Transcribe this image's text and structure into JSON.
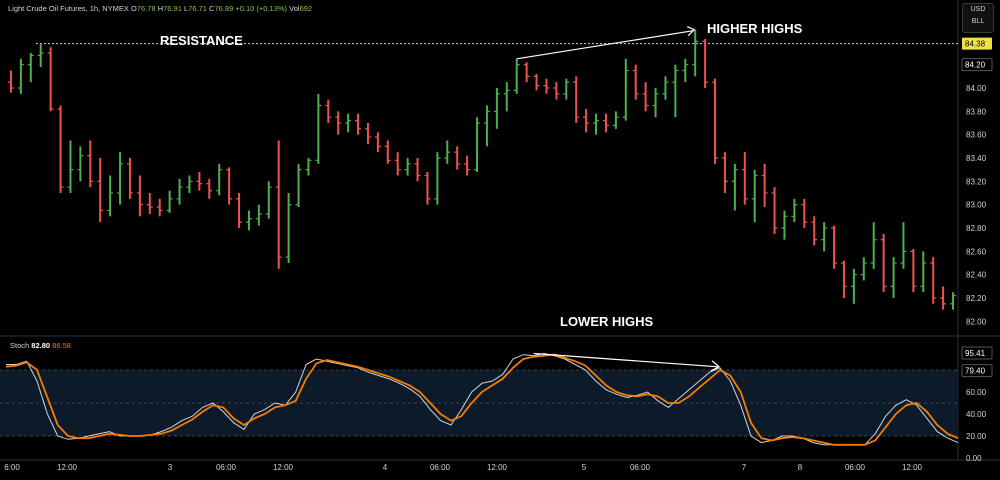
{
  "header": {
    "instrument": "Light Crude Oil Futures, 1h, NYMEX",
    "o_label": "O",
    "o_value": "76.78",
    "h_label": "H",
    "h_value": "76.91",
    "l_label": "L",
    "l_value": "76.71",
    "c_label": "C",
    "c_value": "76.89",
    "change": "+0.10 (+0.13%)",
    "vol_label": "Vol",
    "vol_value": "692"
  },
  "currency": {
    "line1": "USD",
    "line2": "BLL"
  },
  "stoch_header": {
    "label": "Stoch",
    "k_value": "82.80",
    "d_value": "86.58"
  },
  "colors": {
    "up": "#4caf50",
    "down": "#ef5350",
    "k_line": "#d1d4dc",
    "d_line": "#f57c00",
    "resistance": "#f0e14a",
    "price_tag": "#f0e14a"
  },
  "chart_data": [
    {
      "type": "candlestick",
      "title": "",
      "annotations": [
        "RESISTANCE",
        "HIGHER HIGHS"
      ],
      "resistance_level": 84.38,
      "price_tag": "84.38",
      "last_price_tag": "84.20",
      "ylim": [
        81.9,
        84.6
      ],
      "yticks": [
        "84.20",
        "84.00",
        "83.80",
        "83.60",
        "83.40",
        "83.20",
        "83.00",
        "82.80",
        "82.60",
        "82.40",
        "82.20",
        "82.00"
      ],
      "xticks": [
        "6:00",
        "12:00",
        "3",
        "06:00",
        "12:00",
        "4",
        "06:00",
        "12:00",
        "5",
        "06:00",
        "7",
        "8",
        "06:00",
        "12:00"
      ],
      "ohlc": [
        [
          84.05,
          84.15,
          83.96,
          84.0
        ],
        [
          84.0,
          84.25,
          83.95,
          84.2
        ],
        [
          84.2,
          84.3,
          84.05,
          84.28
        ],
        [
          84.28,
          84.38,
          84.18,
          84.3
        ],
        [
          84.3,
          84.35,
          83.8,
          83.82
        ],
        [
          83.82,
          83.85,
          83.1,
          83.15
        ],
        [
          83.15,
          83.55,
          83.1,
          83.3
        ],
        [
          83.3,
          83.5,
          83.2,
          83.42
        ],
        [
          83.42,
          83.55,
          83.15,
          83.2
        ],
        [
          83.2,
          83.4,
          82.85,
          82.95
        ],
        [
          82.95,
          83.25,
          82.9,
          83.1
        ],
        [
          83.1,
          83.45,
          83.0,
          83.35
        ],
        [
          83.35,
          83.4,
          83.05,
          83.1
        ],
        [
          83.1,
          83.25,
          82.9,
          83.0
        ],
        [
          83.0,
          83.1,
          82.92,
          82.98
        ],
        [
          82.98,
          83.05,
          82.9,
          82.95
        ],
        [
          82.95,
          83.12,
          82.93,
          83.05
        ],
        [
          83.05,
          83.22,
          83.0,
          83.15
        ],
        [
          83.15,
          83.25,
          83.1,
          83.2
        ],
        [
          83.2,
          83.28,
          83.12,
          83.18
        ],
        [
          83.18,
          83.22,
          83.05,
          83.12
        ],
        [
          83.12,
          83.35,
          83.08,
          83.3
        ],
        [
          83.3,
          83.32,
          83.0,
          83.05
        ],
        [
          83.05,
          83.1,
          82.8,
          82.85
        ],
        [
          82.85,
          82.95,
          82.78,
          82.88
        ],
        [
          82.88,
          83.0,
          82.82,
          82.92
        ],
        [
          82.92,
          83.2,
          82.88,
          83.15
        ],
        [
          83.15,
          83.55,
          82.45,
          82.55
        ],
        [
          82.55,
          83.1,
          82.5,
          83.0
        ],
        [
          83.0,
          83.35,
          82.98,
          83.3
        ],
        [
          83.3,
          83.4,
          83.25,
          83.38
        ],
        [
          83.38,
          83.95,
          83.35,
          83.85
        ],
        [
          83.85,
          83.9,
          83.7,
          83.75
        ],
        [
          83.75,
          83.8,
          83.6,
          83.7
        ],
        [
          83.7,
          83.78,
          83.62,
          83.72
        ],
        [
          83.72,
          83.78,
          83.6,
          83.65
        ],
        [
          83.65,
          83.7,
          83.52,
          83.58
        ],
        [
          83.58,
          83.62,
          83.45,
          83.5
        ],
        [
          83.5,
          83.55,
          83.35,
          83.38
        ],
        [
          83.38,
          83.45,
          83.25,
          83.3
        ],
        [
          83.3,
          83.4,
          83.25,
          83.35
        ],
        [
          83.35,
          83.4,
          83.2,
          83.25
        ],
        [
          83.25,
          83.28,
          83.0,
          83.05
        ],
        [
          83.05,
          83.45,
          83.0,
          83.4
        ],
        [
          83.4,
          83.55,
          83.35,
          83.45
        ],
        [
          83.45,
          83.5,
          83.3,
          83.35
        ],
        [
          83.35,
          83.42,
          83.25,
          83.3
        ],
        [
          83.3,
          83.75,
          83.28,
          83.7
        ],
        [
          83.7,
          83.85,
          83.5,
          83.8
        ],
        [
          83.8,
          84.0,
          83.65,
          83.95
        ],
        [
          83.95,
          84.05,
          83.8,
          83.98
        ],
        [
          83.98,
          84.25,
          83.95,
          84.2
        ],
        [
          84.2,
          84.22,
          84.05,
          84.1
        ],
        [
          84.1,
          84.12,
          83.98,
          84.02
        ],
        [
          84.02,
          84.08,
          83.95,
          84.0
        ],
        [
          84.0,
          84.05,
          83.9,
          83.95
        ],
        [
          83.95,
          84.08,
          83.9,
          84.05
        ],
        [
          84.05,
          84.1,
          83.7,
          83.75
        ],
        [
          83.75,
          83.82,
          83.62,
          83.7
        ],
        [
          83.7,
          83.78,
          83.6,
          83.72
        ],
        [
          83.72,
          83.78,
          83.62,
          83.68
        ],
        [
          83.68,
          83.8,
          83.65,
          83.75
        ],
        [
          83.75,
          84.25,
          83.72,
          84.15
        ],
        [
          84.15,
          84.2,
          83.9,
          83.95
        ],
        [
          83.95,
          84.05,
          83.8,
          83.85
        ],
        [
          83.85,
          84.0,
          83.75,
          83.95
        ],
        [
          83.95,
          84.1,
          83.9,
          84.05
        ],
        [
          84.05,
          84.2,
          83.75,
          84.15
        ],
        [
          84.15,
          84.25,
          84.05,
          84.2
        ],
        [
          84.2,
          84.5,
          84.1,
          84.4
        ],
        [
          84.4,
          84.42,
          84.0,
          84.05
        ],
        [
          84.05,
          84.08,
          83.35,
          83.4
        ],
        [
          83.4,
          83.45,
          83.1,
          83.2
        ],
        [
          83.2,
          83.35,
          82.95,
          83.3
        ],
        [
          83.3,
          83.45,
          83.0,
          83.05
        ],
        [
          83.05,
          83.3,
          82.85,
          83.25
        ],
        [
          83.25,
          83.35,
          82.98,
          83.1
        ],
        [
          83.1,
          83.15,
          82.75,
          82.8
        ],
        [
          82.8,
          82.95,
          82.7,
          82.9
        ],
        [
          82.9,
          83.05,
          82.85,
          83.0
        ],
        [
          83.0,
          83.05,
          82.8,
          82.85
        ],
        [
          82.85,
          82.9,
          82.65,
          82.7
        ],
        [
          82.7,
          82.85,
          82.6,
          82.8
        ],
        [
          82.8,
          82.82,
          82.45,
          82.5
        ],
        [
          82.5,
          82.52,
          82.2,
          82.3
        ],
        [
          82.3,
          82.45,
          82.15,
          82.4
        ],
        [
          82.4,
          82.55,
          82.35,
          82.5
        ],
        [
          82.5,
          82.85,
          82.45,
          82.7
        ],
        [
          82.7,
          82.75,
          82.25,
          82.3
        ],
        [
          82.3,
          82.55,
          82.2,
          82.5
        ],
        [
          82.5,
          82.85,
          82.45,
          82.6
        ],
        [
          82.6,
          82.62,
          82.25,
          82.3
        ],
        [
          82.3,
          82.6,
          82.25,
          82.5
        ],
        [
          82.5,
          82.55,
          82.15,
          82.2
        ],
        [
          82.2,
          82.3,
          82.1,
          82.15
        ],
        [
          82.15,
          82.25,
          82.1,
          82.22
        ]
      ]
    },
    {
      "type": "line",
      "title": "",
      "annotations": [
        "LOWER HIGHS"
      ],
      "ylim": [
        0,
        100
      ],
      "yticks": [
        "80.00",
        "60.00",
        "40.00",
        "20.00",
        "0.00"
      ],
      "level_tags": [
        "95.41",
        "79.40"
      ],
      "bands": [
        20,
        50,
        80
      ],
      "series": [
        {
          "name": "",
          "values": [
            85,
            85,
            88,
            70,
            40,
            20,
            17,
            18,
            20,
            22,
            24,
            20,
            20,
            20,
            21,
            24,
            28,
            34,
            38,
            46,
            50,
            42,
            32,
            26,
            40,
            44,
            50,
            48,
            60,
            85,
            90,
            88,
            86,
            84,
            82,
            78,
            75,
            72,
            68,
            63,
            56,
            44,
            34,
            30,
            44,
            60,
            68,
            70,
            76,
            90,
            94,
            93,
            95,
            93,
            90,
            85,
            80,
            70,
            62,
            58,
            55,
            57,
            60,
            52,
            46,
            54,
            62,
            70,
            78,
            82,
            70,
            48,
            20,
            14,
            16,
            20,
            20,
            18,
            14,
            12,
            12,
            12,
            12,
            12,
            22,
            38,
            48,
            53,
            48,
            36,
            24,
            18,
            14
          ]
        },
        {
          "name": "",
          "values": [
            83,
            84,
            87,
            80,
            55,
            30,
            20,
            18,
            18,
            20,
            22,
            21,
            20,
            20,
            21,
            22,
            25,
            30,
            35,
            42,
            48,
            46,
            36,
            30,
            36,
            40,
            46,
            48,
            52,
            72,
            86,
            89,
            87,
            85,
            83,
            80,
            77,
            74,
            70,
            66,
            60,
            50,
            40,
            34,
            38,
            50,
            60,
            66,
            72,
            82,
            90,
            92,
            93,
            94,
            91,
            88,
            84,
            75,
            66,
            60,
            57,
            56,
            58,
            56,
            50,
            50,
            56,
            64,
            72,
            80,
            75,
            60,
            32,
            18,
            16,
            18,
            19,
            18,
            16,
            14,
            12,
            12,
            12,
            12,
            16,
            28,
            40,
            48,
            50,
            42,
            30,
            22,
            18
          ]
        }
      ]
    }
  ]
}
